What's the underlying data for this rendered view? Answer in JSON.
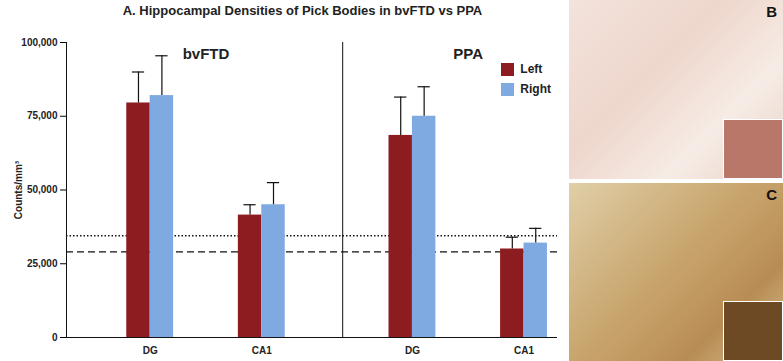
{
  "chart_data": {
    "type": "bar",
    "title": "A. Hippocampal Densities of Pick Bodies in bvFTD vs PPA",
    "y_label": "Counts/mm³",
    "groups": [
      "bvFTD",
      "bvFTD",
      "PPA",
      "PPA"
    ],
    "categories": [
      "DG",
      "CA1",
      "DG",
      "CA1"
    ],
    "series": [
      {
        "name": "Left",
        "color": "#8c1c1f",
        "values": [
          79500,
          41500,
          68500,
          30000
        ],
        "errors": [
          10500,
          3500,
          13000,
          4000
        ]
      },
      {
        "name": "Right",
        "color": "#7ea9e1",
        "values": [
          82000,
          45000,
          75000,
          32000
        ],
        "errors": [
          13500,
          7500,
          10000,
          5000
        ]
      }
    ],
    "ylim": [
      0,
      100000
    ],
    "yticks": [
      0,
      {
        "value": 25000,
        "label": "25,000"
      },
      {
        "value": 50000,
        "label": "50,000"
      },
      {
        "value": 75000,
        "label": "75,000"
      },
      {
        "value": 100000,
        "label": "100,000"
      }
    ],
    "reference_lines": [
      {
        "value": 34500,
        "line_style": "dotted"
      },
      {
        "value": 29000,
        "line_style": "dashed"
      }
    ],
    "legend": "top-right",
    "grid": false
  },
  "panels": [
    {
      "label": "B"
    },
    {
      "label": "C"
    }
  ]
}
